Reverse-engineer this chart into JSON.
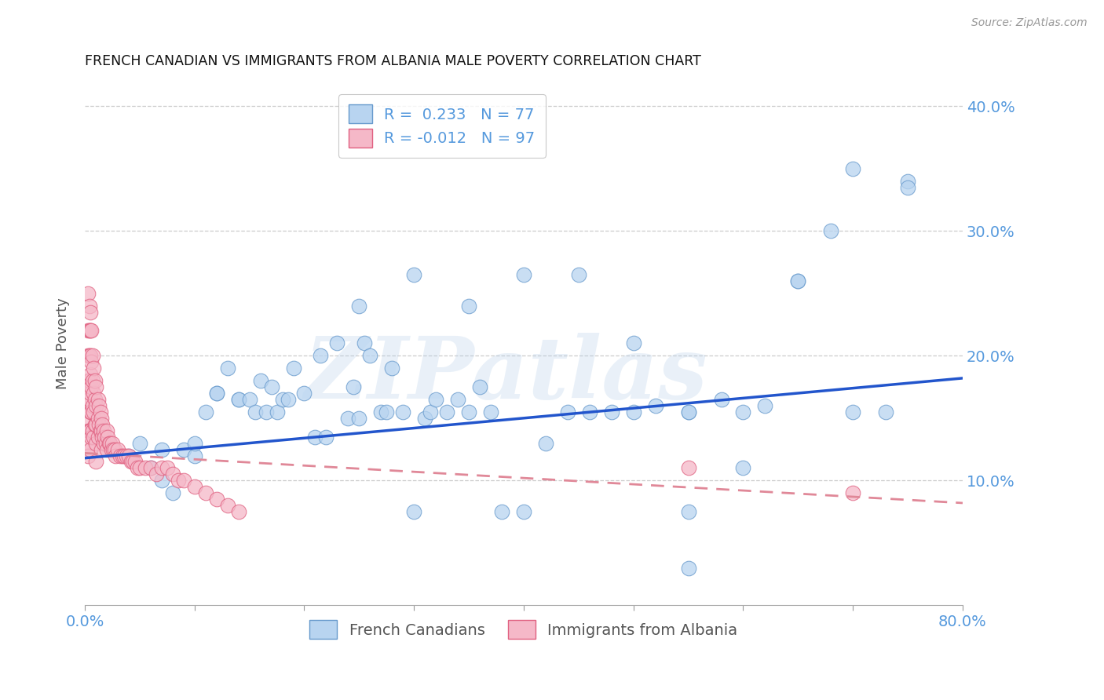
{
  "title": "FRENCH CANADIAN VS IMMIGRANTS FROM ALBANIA MALE POVERTY CORRELATION CHART",
  "source": "Source: ZipAtlas.com",
  "ylabel": "Male Poverty",
  "watermark": "ZIPatlas",
  "xlim": [
    0.0,
    0.8
  ],
  "ylim": [
    0.0,
    0.42
  ],
  "xticks": [
    0.0,
    0.1,
    0.2,
    0.3,
    0.4,
    0.5,
    0.6,
    0.7,
    0.8
  ],
  "yticks": [
    0.0,
    0.1,
    0.2,
    0.3,
    0.4
  ],
  "yticklabels_right": [
    "",
    "10.0%",
    "20.0%",
    "30.0%",
    "40.0%"
  ],
  "legend_entries": [
    {
      "label": "R =  0.233   N = 77"
    },
    {
      "label": "R = -0.012   N = 97"
    }
  ],
  "series_blue": {
    "name": "French Canadians",
    "face_color": "#b8d4f0",
    "edge_color": "#6699cc",
    "trend_color": "#2255cc",
    "trend_start_y": 0.118,
    "trend_end_y": 0.182
  },
  "series_pink": {
    "name": "Immigrants from Albania",
    "face_color": "#f5b8c8",
    "edge_color": "#e06080",
    "trend_color": "#e08898",
    "trend_start_y": 0.122,
    "trend_end_y": 0.082
  },
  "blue_points": {
    "x": [
      0.04,
      0.05,
      0.06,
      0.07,
      0.07,
      0.08,
      0.09,
      0.1,
      0.1,
      0.11,
      0.12,
      0.12,
      0.13,
      0.14,
      0.14,
      0.15,
      0.155,
      0.16,
      0.165,
      0.17,
      0.175,
      0.18,
      0.185,
      0.19,
      0.2,
      0.21,
      0.215,
      0.22,
      0.23,
      0.24,
      0.245,
      0.25,
      0.255,
      0.26,
      0.27,
      0.275,
      0.28,
      0.29,
      0.3,
      0.31,
      0.315,
      0.32,
      0.33,
      0.34,
      0.35,
      0.36,
      0.37,
      0.38,
      0.4,
      0.42,
      0.44,
      0.46,
      0.48,
      0.5,
      0.52,
      0.55,
      0.58,
      0.6,
      0.62,
      0.65,
      0.68,
      0.7,
      0.73,
      0.75,
      0.55,
      0.6,
      0.65,
      0.7,
      0.75,
      0.55,
      0.25,
      0.3,
      0.35,
      0.4,
      0.45,
      0.5,
      0.55
    ],
    "y": [
      0.12,
      0.13,
      0.11,
      0.1,
      0.125,
      0.09,
      0.125,
      0.12,
      0.13,
      0.155,
      0.17,
      0.17,
      0.19,
      0.165,
      0.165,
      0.165,
      0.155,
      0.18,
      0.155,
      0.175,
      0.155,
      0.165,
      0.165,
      0.19,
      0.17,
      0.135,
      0.2,
      0.135,
      0.21,
      0.15,
      0.175,
      0.15,
      0.21,
      0.2,
      0.155,
      0.155,
      0.19,
      0.155,
      0.075,
      0.15,
      0.155,
      0.165,
      0.155,
      0.165,
      0.155,
      0.175,
      0.155,
      0.075,
      0.075,
      0.13,
      0.155,
      0.155,
      0.155,
      0.155,
      0.16,
      0.155,
      0.165,
      0.11,
      0.16,
      0.26,
      0.3,
      0.155,
      0.155,
      0.34,
      0.155,
      0.155,
      0.26,
      0.35,
      0.335,
      0.03,
      0.24,
      0.265,
      0.24,
      0.265,
      0.265,
      0.21,
      0.075
    ]
  },
  "pink_points": {
    "x": [
      0.003,
      0.003,
      0.003,
      0.003,
      0.003,
      0.003,
      0.003,
      0.003,
      0.003,
      0.003,
      0.004,
      0.004,
      0.004,
      0.004,
      0.004,
      0.004,
      0.005,
      0.005,
      0.005,
      0.005,
      0.005,
      0.005,
      0.005,
      0.005,
      0.006,
      0.006,
      0.006,
      0.006,
      0.006,
      0.007,
      0.007,
      0.007,
      0.007,
      0.008,
      0.008,
      0.008,
      0.008,
      0.009,
      0.009,
      0.009,
      0.01,
      0.01,
      0.01,
      0.01,
      0.01,
      0.012,
      0.012,
      0.012,
      0.013,
      0.013,
      0.014,
      0.014,
      0.015,
      0.015,
      0.015,
      0.016,
      0.016,
      0.017,
      0.017,
      0.018,
      0.019,
      0.02,
      0.02,
      0.021,
      0.022,
      0.023,
      0.024,
      0.025,
      0.026,
      0.027,
      0.028,
      0.03,
      0.032,
      0.034,
      0.036,
      0.038,
      0.04,
      0.042,
      0.044,
      0.046,
      0.048,
      0.05,
      0.055,
      0.06,
      0.065,
      0.07,
      0.075,
      0.08,
      0.085,
      0.09,
      0.1,
      0.11,
      0.12,
      0.13,
      0.14,
      0.55,
      0.7
    ],
    "y": [
      0.25,
      0.22,
      0.2,
      0.18,
      0.175,
      0.165,
      0.15,
      0.14,
      0.13,
      0.12,
      0.24,
      0.22,
      0.2,
      0.18,
      0.165,
      0.14,
      0.235,
      0.22,
      0.2,
      0.185,
      0.17,
      0.155,
      0.14,
      0.125,
      0.22,
      0.195,
      0.175,
      0.155,
      0.135,
      0.2,
      0.18,
      0.16,
      0.14,
      0.19,
      0.17,
      0.155,
      0.135,
      0.18,
      0.165,
      0.145,
      0.175,
      0.16,
      0.145,
      0.13,
      0.115,
      0.165,
      0.15,
      0.135,
      0.16,
      0.145,
      0.155,
      0.14,
      0.15,
      0.14,
      0.125,
      0.145,
      0.135,
      0.14,
      0.13,
      0.135,
      0.13,
      0.14,
      0.125,
      0.135,
      0.13,
      0.13,
      0.125,
      0.13,
      0.125,
      0.125,
      0.12,
      0.125,
      0.12,
      0.12,
      0.12,
      0.12,
      0.12,
      0.115,
      0.115,
      0.115,
      0.11,
      0.11,
      0.11,
      0.11,
      0.105,
      0.11,
      0.11,
      0.105,
      0.1,
      0.1,
      0.095,
      0.09,
      0.085,
      0.08,
      0.075,
      0.11,
      0.09
    ]
  },
  "grid_color": "#cccccc",
  "background_color": "#ffffff",
  "title_color": "#111111",
  "tick_color": "#5599dd"
}
